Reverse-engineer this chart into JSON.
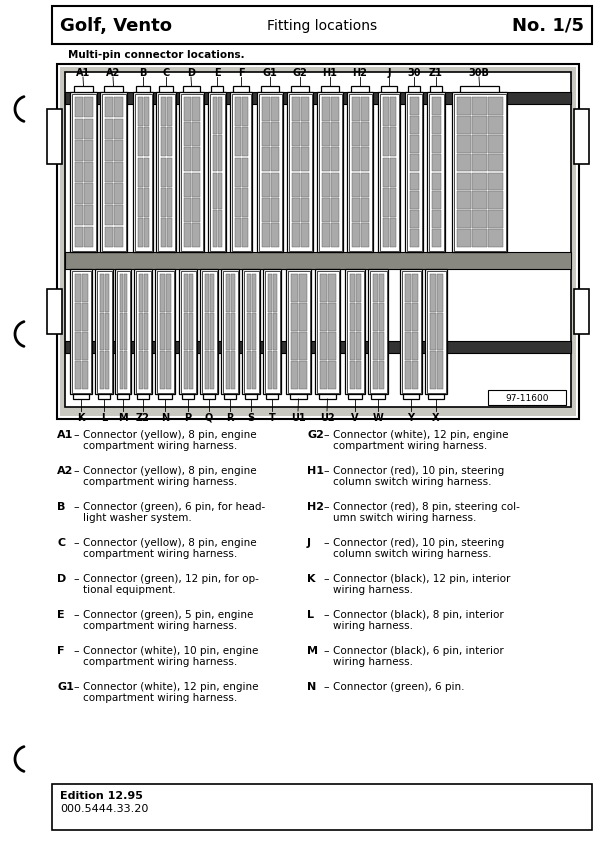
{
  "title_left": "Golf, Vento",
  "title_center": "Fitting locations",
  "title_right": "No. 1/5",
  "subtitle": "Multi-pin connector locations.",
  "diagram_ref": "97-11600",
  "top_labels": [
    "A1",
    "A2",
    "B",
    "C",
    "D",
    "E",
    "F",
    "G1",
    "G2",
    "H1",
    "H2",
    "J",
    "30",
    "Z1",
    "30B"
  ],
  "bottom_labels": [
    "K",
    "L",
    "M",
    "Z2",
    "N",
    "P",
    "Q",
    "R",
    "S",
    "T",
    "U1",
    "U2",
    "V",
    "W",
    "Y",
    "X"
  ],
  "edition": "Edition 12.95",
  "part_number": "000.5444.33.20",
  "left_entries": [
    [
      "A1",
      "Connector (yellow), 8 pin, engine\ncompartment wiring harness."
    ],
    [
      "A2",
      "Connector (yellow), 8 pin, engine\ncompartment wiring harness."
    ],
    [
      "B",
      "Connector (green), 6 pin, for head-\nlight washer system."
    ],
    [
      "C",
      "Connector (yellow), 8 pin, engine\ncompartment wiring harness."
    ],
    [
      "D",
      "Connector (green), 12 pin, for op-\ntional equipment."
    ],
    [
      "E",
      "Connector (green), 5 pin, engine\ncompartment wiring harness."
    ],
    [
      "F",
      "Connector (white), 10 pin, engine\ncompartment wiring harness."
    ],
    [
      "G1",
      "Connector (white), 12 pin, engine\ncompartment wiring harness."
    ]
  ],
  "right_entries": [
    [
      "G2",
      "Connector (white), 12 pin, engine\ncompartment wiring harness."
    ],
    [
      "H1",
      "Connector (red), 10 pin, steering\ncolumn switch wiring harness."
    ],
    [
      "H2",
      "Connector (red), 8 pin, steering col-\numn switch wiring harness."
    ],
    [
      "J",
      "Connector (red), 10 pin, steering\ncolumn switch wiring harness."
    ],
    [
      "K",
      "Connector (black), 12 pin, interior\nwiring harness."
    ],
    [
      "L",
      "Connector (black), 8 pin, interior\nwiring harness."
    ],
    [
      "M",
      "Connector (black), 6 pin, interior\nwiring harness."
    ],
    [
      "N",
      "Connector (green), 6 pin."
    ]
  ]
}
